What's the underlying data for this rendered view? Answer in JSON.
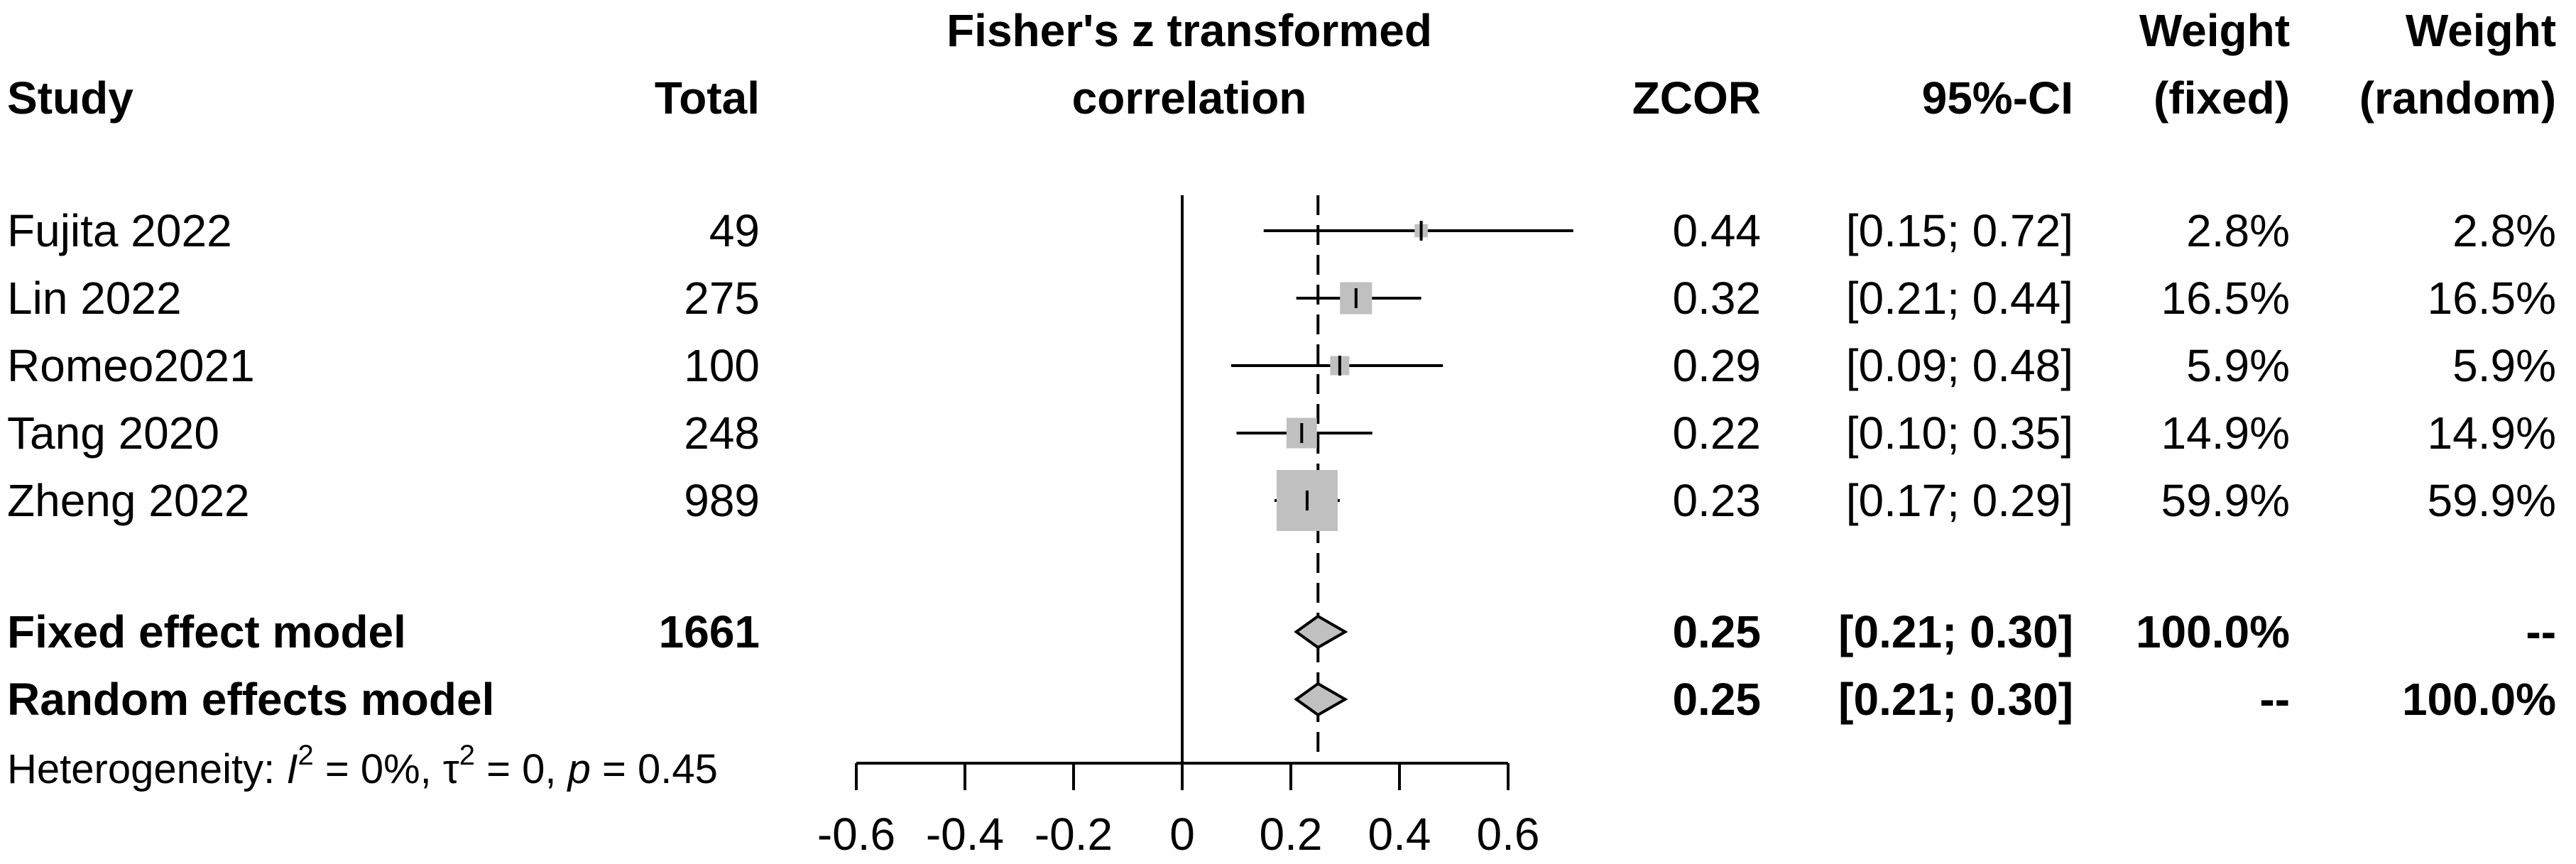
{
  "chart_data": {
    "type": "forest",
    "headers": {
      "study": "Study",
      "total": "Total",
      "plot_line1": "Fisher's z transformed",
      "plot_line2": "correlation",
      "zcor": "ZCOR",
      "ci": "95%-CI",
      "wfixed_line1": "Weight",
      "wfixed_line2": "(fixed)",
      "wrandom_line1": "Weight",
      "wrandom_line2": "(random)"
    },
    "studies": [
      {
        "name": "Fujita 2022",
        "total": "49",
        "zcor": 0.44,
        "lower": 0.15,
        "upper": 0.72,
        "zcor_label": "0.44",
        "ci_label": "[0.15; 0.72]",
        "w_fixed": "2.8%",
        "w_random": "2.8%",
        "weight": 2.8
      },
      {
        "name": "Lin 2022",
        "total": "275",
        "zcor": 0.32,
        "lower": 0.21,
        "upper": 0.44,
        "zcor_label": "0.32",
        "ci_label": "[0.21; 0.44]",
        "w_fixed": "16.5%",
        "w_random": "16.5%",
        "weight": 16.5
      },
      {
        "name": "Romeo2021",
        "total": "100",
        "zcor": 0.29,
        "lower": 0.09,
        "upper": 0.48,
        "zcor_label": "0.29",
        "ci_label": "[0.09; 0.48]",
        "w_fixed": "5.9%",
        "w_random": "5.9%",
        "weight": 5.9
      },
      {
        "name": "Tang 2020",
        "total": "248",
        "zcor": 0.22,
        "lower": 0.1,
        "upper": 0.35,
        "zcor_label": "0.22",
        "ci_label": "[0.10; 0.35]",
        "w_fixed": "14.9%",
        "w_random": "14.9%",
        "weight": 14.9
      },
      {
        "name": "Zheng 2022",
        "total": "989",
        "zcor": 0.23,
        "lower": 0.17,
        "upper": 0.29,
        "zcor_label": "0.23",
        "ci_label": "[0.17; 0.29]",
        "w_fixed": "59.9%",
        "w_random": "59.9%",
        "weight": 59.9
      }
    ],
    "summaries": [
      {
        "name": "Fixed effect model",
        "total": "1661",
        "zcor": 0.25,
        "lower": 0.21,
        "upper": 0.3,
        "zcor_label": "0.25",
        "ci_label": "[0.21; 0.30]",
        "w_fixed": "100.0%",
        "w_random": "--"
      },
      {
        "name": "Random effects model",
        "total": "",
        "zcor": 0.25,
        "lower": 0.21,
        "upper": 0.3,
        "zcor_label": "0.25",
        "ci_label": "[0.21; 0.30]",
        "w_fixed": "--",
        "w_random": "100.0%"
      }
    ],
    "heterogeneity": {
      "prefix": "Heterogeneity: ",
      "i_symbol": "I",
      "i_value": " = 0%, ",
      "tau_symbol": "τ",
      "tau_value": " = 0, ",
      "p_symbol": "p",
      "p_value": " = 0.45"
    },
    "x_axis": {
      "ticks": [
        -0.6,
        -0.4,
        -0.2,
        0,
        0.2,
        0.4,
        0.6
      ],
      "tick_labels": [
        "-0.6",
        "-0.4",
        "-0.2",
        "0",
        "0.2",
        "0.4",
        "0.6"
      ],
      "range": [
        -0.6,
        0.6
      ]
    },
    "reference_line": 0,
    "summary_line": 0.25
  }
}
